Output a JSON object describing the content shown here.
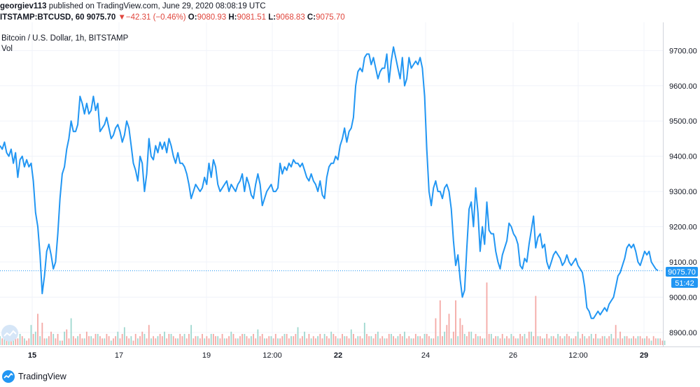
{
  "header": {
    "author": "georgiev113",
    "published_text": "published on TradingView.com, June 29, 2020 08:08:19 UTC",
    "symbol": "ITSTAMP:BTCUSD, 60",
    "last_price": "9075.70",
    "change_arrow": "▼",
    "change": "−42.31 (−0.46%)",
    "ohlc": {
      "o_label": "O:",
      "o": "9080.93",
      "h_label": "H:",
      "h": "9081.51",
      "l_label": "L:",
      "l": "9068.83",
      "c_label": "C:",
      "c": "9075.70"
    }
  },
  "legend": {
    "title": "Bitcoin / U.S. Dollar, 1h, BITSTAMP",
    "volume_label": "Vol"
  },
  "price_axis": {
    "ticks": [
      "9700.00",
      "9600.00",
      "9500.00",
      "9400.00",
      "9300.00",
      "9200.00",
      "9100.00",
      "9000.00",
      "8900.00"
    ],
    "current_price_label": "9075.70",
    "countdown_label": "51:42"
  },
  "time_axis": {
    "ticks": [
      "15",
      "17",
      "19",
      "12:00",
      "22",
      "24",
      "26",
      "12:00",
      "29"
    ]
  },
  "footer": {
    "brand": "TradingView"
  },
  "colors": {
    "line": "#2196f3",
    "vol_up": "#9fd8cf",
    "vol_down": "#f4a9a5",
    "accent_red": "#e0463d",
    "grid": "#f0f3fa",
    "axis_text": "#131722"
  },
  "chart_data": {
    "type": "line",
    "title": "Bitcoin / U.S. Dollar, 1h, BITSTAMP",
    "xlabel": "",
    "ylabel": "",
    "ylim": [
      8860,
      9780
    ],
    "grid": true,
    "x_tick_labels": [
      "15",
      "17",
      "19",
      "12:00",
      "22",
      "24",
      "26",
      "12:00",
      "29"
    ],
    "series": [
      {
        "name": "BTCUSD",
        "values": [
          9430,
          9420,
          9440,
          9410,
          9400,
          9420,
          9380,
          9410,
          9340,
          9390,
          9400,
          9370,
          9390,
          9370,
          9380,
          9330,
          9240,
          9200,
          9120,
          9010,
          9060,
          9130,
          9150,
          9120,
          9080,
          9100,
          9180,
          9280,
          9350,
          9370,
          9420,
          9450,
          9500,
          9470,
          9470,
          9490,
          9570,
          9550,
          9520,
          9550,
          9520,
          9530,
          9570,
          9530,
          9550,
          9470,
          9480,
          9490,
          9510,
          9480,
          9450,
          9460,
          9480,
          9490,
          9470,
          9440,
          9460,
          9500,
          9480,
          9430,
          9380,
          9360,
          9330,
          9400,
          9380,
          9300,
          9350,
          9450,
          9400,
          9390,
          9430,
          9410,
          9440,
          9420,
          9440,
          9410,
          9450,
          9430,
          9400,
          9380,
          9410,
          9380,
          9380,
          9370,
          9350,
          9320,
          9280,
          9300,
          9320,
          9310,
          9300,
          9310,
          9340,
          9320,
          9380,
          9340,
          9390,
          9370,
          9320,
          9300,
          9310,
          9320,
          9330,
          9300,
          9320,
          9310,
          9300,
          9320,
          9330,
          9350,
          9300,
          9340,
          9320,
          9290,
          9280,
          9320,
          9350,
          9320,
          9260,
          9280,
          9300,
          9310,
          9320,
          9300,
          9300,
          9310,
          9380,
          9350,
          9370,
          9360,
          9380,
          9370,
          9390,
          9380,
          9380,
          9370,
          9380,
          9360,
          9340,
          9330,
          9350,
          9330,
          9320,
          9300,
          9330,
          9290,
          9280,
          9340,
          9370,
          9380,
          9380,
          9400,
          9390,
          9430,
          9450,
          9480,
          9440,
          9470,
          9480,
          9510,
          9600,
          9640,
          9650,
          9640,
          9680,
          9690,
          9690,
          9660,
          9680,
          9650,
          9620,
          9640,
          9650,
          9650,
          9690,
          9610,
          9670,
          9710,
          9680,
          9650,
          9620,
          9680,
          9600,
          9620,
          9680,
          9650,
          9660,
          9670,
          9660,
          9680,
          9650,
          9570,
          9420,
          9300,
          9260,
          9310,
          9330,
          9300,
          9300,
          9280,
          9310,
          9320,
          9300,
          9250,
          9160,
          9090,
          9120,
          9050,
          9000,
          9020,
          9140,
          9250,
          9270,
          9200,
          9310,
          9240,
          9130,
          9200,
          9150,
          9270,
          9190,
          9180,
          9180,
          9130,
          9100,
          9080,
          9120,
          9140,
          9160,
          9210,
          9200,
          9180,
          9170,
          9150,
          9090,
          9080,
          9110,
          9100,
          9150,
          9190,
          9230,
          9140,
          9170,
          9180,
          9140,
          9150,
          9100,
          9080,
          9100,
          9120,
          9130,
          9120,
          9110,
          9090,
          9100,
          9120,
          9100,
          9090,
          9100,
          9110,
          9090,
          9080,
          9070,
          9030,
          8970,
          8960,
          8940,
          8940,
          8950,
          8960,
          8950,
          8960,
          8970,
          8960,
          8980,
          8990,
          9000,
          9030,
          9060,
          9070,
          9090,
          9110,
          9140,
          9150,
          9140,
          9150,
          9130,
          9100,
          9090,
          9110,
          9130,
          9120,
          9130,
          9100,
          9090,
          9080,
          9075
        ]
      }
    ],
    "volume_up_points": [
      [
        0,
        4
      ],
      [
        2,
        3
      ],
      [
        4,
        8
      ],
      [
        6,
        3
      ],
      [
        9,
        5
      ],
      [
        11,
        3
      ],
      [
        14,
        9
      ],
      [
        16,
        6
      ],
      [
        18,
        4
      ],
      [
        21,
        3
      ],
      [
        24,
        5
      ],
      [
        27,
        2
      ],
      [
        29,
        6
      ],
      [
        32,
        12
      ],
      [
        35,
        4
      ],
      [
        38,
        3
      ],
      [
        41,
        4
      ],
      [
        44,
        5
      ],
      [
        47,
        3
      ],
      [
        50,
        2
      ],
      [
        53,
        6
      ],
      [
        56,
        8
      ],
      [
        59,
        4
      ],
      [
        62,
        3
      ],
      [
        65,
        5
      ],
      [
        68,
        3
      ],
      [
        71,
        4
      ],
      [
        74,
        6
      ],
      [
        77,
        5
      ],
      [
        80,
        3
      ],
      [
        83,
        5
      ],
      [
        86,
        9
      ],
      [
        89,
        4
      ],
      [
        92,
        3
      ],
      [
        95,
        5
      ],
      [
        98,
        4
      ],
      [
        101,
        3
      ],
      [
        104,
        6
      ],
      [
        107,
        3
      ],
      [
        110,
        5
      ],
      [
        113,
        4
      ],
      [
        116,
        7
      ],
      [
        119,
        3
      ],
      [
        122,
        4
      ],
      [
        125,
        3
      ],
      [
        128,
        5
      ],
      [
        131,
        4
      ],
      [
        134,
        8
      ],
      [
        137,
        6
      ],
      [
        140,
        3
      ],
      [
        143,
        4
      ],
      [
        146,
        5
      ],
      [
        149,
        6
      ],
      [
        152,
        3
      ],
      [
        155,
        4
      ],
      [
        158,
        7
      ],
      [
        161,
        4
      ],
      [
        164,
        10
      ],
      [
        167,
        4
      ],
      [
        170,
        6
      ],
      [
        173,
        3
      ],
      [
        176,
        5
      ],
      [
        179,
        4
      ],
      [
        182,
        6
      ],
      [
        185,
        3
      ],
      [
        188,
        4
      ],
      [
        191,
        5
      ],
      [
        194,
        3
      ],
      [
        197,
        4
      ],
      [
        200,
        6
      ],
      [
        203,
        3
      ],
      [
        206,
        4
      ],
      [
        209,
        5
      ],
      [
        212,
        6
      ],
      [
        215,
        4
      ],
      [
        218,
        3
      ],
      [
        221,
        5
      ],
      [
        224,
        4
      ],
      [
        227,
        3
      ],
      [
        230,
        5
      ],
      [
        233,
        3
      ],
      [
        236,
        5
      ],
      [
        239,
        6
      ],
      [
        242,
        4
      ],
      [
        245,
        3
      ],
      [
        248,
        4
      ],
      [
        251,
        5
      ],
      [
        254,
        4
      ],
      [
        257,
        3
      ],
      [
        260,
        6
      ],
      [
        263,
        4
      ],
      [
        266,
        5
      ],
      [
        269,
        3
      ],
      [
        272,
        4
      ],
      [
        275,
        5
      ],
      [
        278,
        3
      ],
      [
        281,
        4
      ],
      [
        284,
        3
      ],
      [
        287,
        4
      ],
      [
        290,
        3
      ],
      [
        293,
        2
      ],
      [
        296,
        3
      ],
      [
        299,
        2
      ]
    ],
    "volume_down_points": [
      [
        1,
        3
      ],
      [
        3,
        5
      ],
      [
        5,
        2
      ],
      [
        7,
        4
      ],
      [
        8,
        3
      ],
      [
        10,
        4
      ],
      [
        12,
        2
      ],
      [
        13,
        3
      ],
      [
        15,
        5
      ],
      [
        17,
        14
      ],
      [
        19,
        10
      ],
      [
        20,
        3
      ],
      [
        22,
        4
      ],
      [
        23,
        6
      ],
      [
        25,
        3
      ],
      [
        26,
        5
      ],
      [
        28,
        2
      ],
      [
        30,
        7
      ],
      [
        31,
        3
      ],
      [
        33,
        4
      ],
      [
        34,
        3
      ],
      [
        36,
        5
      ],
      [
        37,
        3
      ],
      [
        39,
        6
      ],
      [
        40,
        4
      ],
      [
        42,
        3
      ],
      [
        43,
        5
      ],
      [
        45,
        4
      ],
      [
        46,
        3
      ],
      [
        48,
        5
      ],
      [
        49,
        4
      ],
      [
        51,
        3
      ],
      [
        52,
        4
      ],
      [
        54,
        3
      ],
      [
        55,
        5
      ],
      [
        57,
        4
      ],
      [
        58,
        3
      ],
      [
        60,
        2
      ],
      [
        61,
        5
      ],
      [
        63,
        4
      ],
      [
        64,
        6
      ],
      [
        66,
        3
      ],
      [
        67,
        9
      ],
      [
        69,
        4
      ],
      [
        70,
        3
      ],
      [
        72,
        5
      ],
      [
        73,
        4
      ],
      [
        75,
        3
      ],
      [
        76,
        5
      ],
      [
        78,
        4
      ],
      [
        79,
        3
      ],
      [
        81,
        5
      ],
      [
        82,
        4
      ],
      [
        84,
        3
      ],
      [
        85,
        5
      ],
      [
        87,
        3
      ],
      [
        88,
        4
      ],
      [
        90,
        3
      ],
      [
        91,
        5
      ],
      [
        93,
        4
      ],
      [
        94,
        3
      ],
      [
        96,
        5
      ],
      [
        97,
        4
      ],
      [
        99,
        3
      ],
      [
        100,
        5
      ],
      [
        102,
        3
      ],
      [
        103,
        4
      ],
      [
        105,
        5
      ],
      [
        106,
        3
      ],
      [
        108,
        4
      ],
      [
        109,
        5
      ],
      [
        111,
        4
      ],
      [
        112,
        3
      ],
      [
        114,
        5
      ],
      [
        115,
        3
      ],
      [
        117,
        4
      ],
      [
        118,
        5
      ],
      [
        120,
        3
      ],
      [
        121,
        4
      ],
      [
        123,
        3
      ],
      [
        124,
        5
      ],
      [
        126,
        3
      ],
      [
        127,
        4
      ],
      [
        129,
        5
      ],
      [
        130,
        3
      ],
      [
        132,
        4
      ],
      [
        133,
        5
      ],
      [
        135,
        3
      ],
      [
        136,
        4
      ],
      [
        138,
        3
      ],
      [
        139,
        5
      ],
      [
        141,
        4
      ],
      [
        142,
        3
      ],
      [
        144,
        5
      ],
      [
        145,
        3
      ],
      [
        147,
        4
      ],
      [
        148,
        3
      ],
      [
        150,
        5
      ],
      [
        151,
        4
      ],
      [
        153,
        3
      ],
      [
        154,
        5
      ],
      [
        156,
        4
      ],
      [
        157,
        3
      ],
      [
        159,
        5
      ],
      [
        160,
        3
      ],
      [
        162,
        4
      ],
      [
        163,
        3
      ],
      [
        165,
        5
      ],
      [
        166,
        4
      ],
      [
        168,
        3
      ],
      [
        169,
        5
      ],
      [
        171,
        3
      ],
      [
        172,
        4
      ],
      [
        174,
        3
      ],
      [
        175,
        5
      ],
      [
        177,
        4
      ],
      [
        178,
        3
      ],
      [
        180,
        5
      ],
      [
        181,
        4
      ],
      [
        183,
        3
      ],
      [
        184,
        4
      ],
      [
        186,
        3
      ],
      [
        187,
        5
      ],
      [
        189,
        4
      ],
      [
        190,
        3
      ],
      [
        192,
        5
      ],
      [
        193,
        4
      ],
      [
        195,
        3
      ],
      [
        196,
        12
      ],
      [
        198,
        20
      ],
      [
        199,
        4
      ],
      [
        201,
        9
      ],
      [
        202,
        14
      ],
      [
        204,
        6
      ],
      [
        205,
        20
      ],
      [
        207,
        12
      ],
      [
        208,
        9
      ],
      [
        210,
        4
      ],
      [
        211,
        6
      ],
      [
        213,
        3
      ],
      [
        214,
        5
      ],
      [
        216,
        4
      ],
      [
        217,
        3
      ],
      [
        219,
        28
      ],
      [
        220,
        5
      ],
      [
        222,
        3
      ],
      [
        223,
        4
      ],
      [
        225,
        3
      ],
      [
        226,
        5
      ],
      [
        228,
        4
      ],
      [
        229,
        3
      ],
      [
        231,
        4
      ],
      [
        232,
        3
      ],
      [
        234,
        5
      ],
      [
        235,
        4
      ],
      [
        237,
        3
      ],
      [
        238,
        6
      ],
      [
        240,
        4
      ],
      [
        241,
        22
      ],
      [
        243,
        4
      ],
      [
        244,
        3
      ],
      [
        246,
        5
      ],
      [
        247,
        3
      ],
      [
        249,
        4
      ],
      [
        250,
        3
      ],
      [
        252,
        4
      ],
      [
        253,
        3
      ],
      [
        255,
        5
      ],
      [
        256,
        4
      ],
      [
        258,
        3
      ],
      [
        259,
        4
      ],
      [
        261,
        3
      ],
      [
        262,
        5
      ],
      [
        264,
        3
      ],
      [
        265,
        4
      ],
      [
        267,
        3
      ],
      [
        268,
        5
      ],
      [
        270,
        3
      ],
      [
        271,
        4
      ],
      [
        273,
        3
      ],
      [
        274,
        4
      ],
      [
        276,
        3
      ],
      [
        277,
        9
      ],
      [
        279,
        6
      ],
      [
        280,
        3
      ],
      [
        282,
        4
      ],
      [
        283,
        3
      ],
      [
        285,
        4
      ],
      [
        286,
        3
      ],
      [
        288,
        4
      ],
      [
        289,
        3
      ],
      [
        291,
        4
      ],
      [
        292,
        3
      ],
      [
        294,
        4
      ],
      [
        295,
        3
      ],
      [
        297,
        3
      ],
      [
        298,
        2
      ]
    ]
  }
}
